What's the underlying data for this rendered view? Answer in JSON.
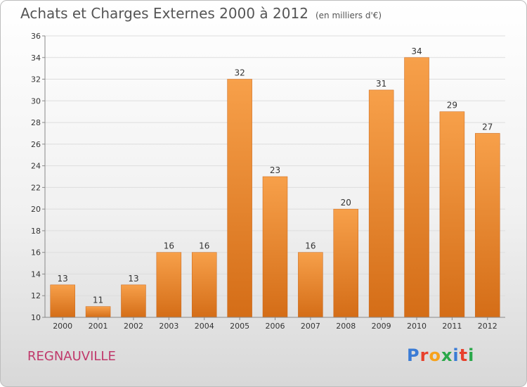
{
  "title": "Achats et Charges Externes 2000 à 2012",
  "subtitle": "(en milliers d'€)",
  "commune": "REGNAUVILLE",
  "logo": {
    "letters": [
      "P",
      "r",
      "o",
      "x",
      "i",
      "t",
      "i"
    ],
    "colors": [
      "#3a7bd5",
      "#e8402b",
      "#f7a21b",
      "#2aa84a",
      "#3a7bd5",
      "#e8402b",
      "#2aa84a"
    ]
  },
  "colors": {
    "bar_light": "#f7a04a",
    "bar_dark": "#d46d17",
    "grid": "#dddddd",
    "axis": "#888888",
    "title": "#555555",
    "commune": "#c0396b"
  },
  "chart_data": {
    "type": "bar",
    "title": "Achats et Charges Externes 2000 à 2012",
    "subtitle": "(en milliers d'€)",
    "categories": [
      "2000",
      "2001",
      "2002",
      "2003",
      "2004",
      "2005",
      "2006",
      "2007",
      "2008",
      "2009",
      "2010",
      "2011",
      "2012"
    ],
    "values": [
      13,
      11,
      13,
      16,
      16,
      32,
      23,
      16,
      20,
      31,
      34,
      29,
      27
    ],
    "ylim": [
      10,
      36
    ],
    "yticks": [
      10,
      12,
      14,
      16,
      18,
      20,
      22,
      24,
      26,
      28,
      30,
      32,
      34,
      36
    ],
    "grid": true,
    "legend": "none",
    "data_labels": true
  }
}
